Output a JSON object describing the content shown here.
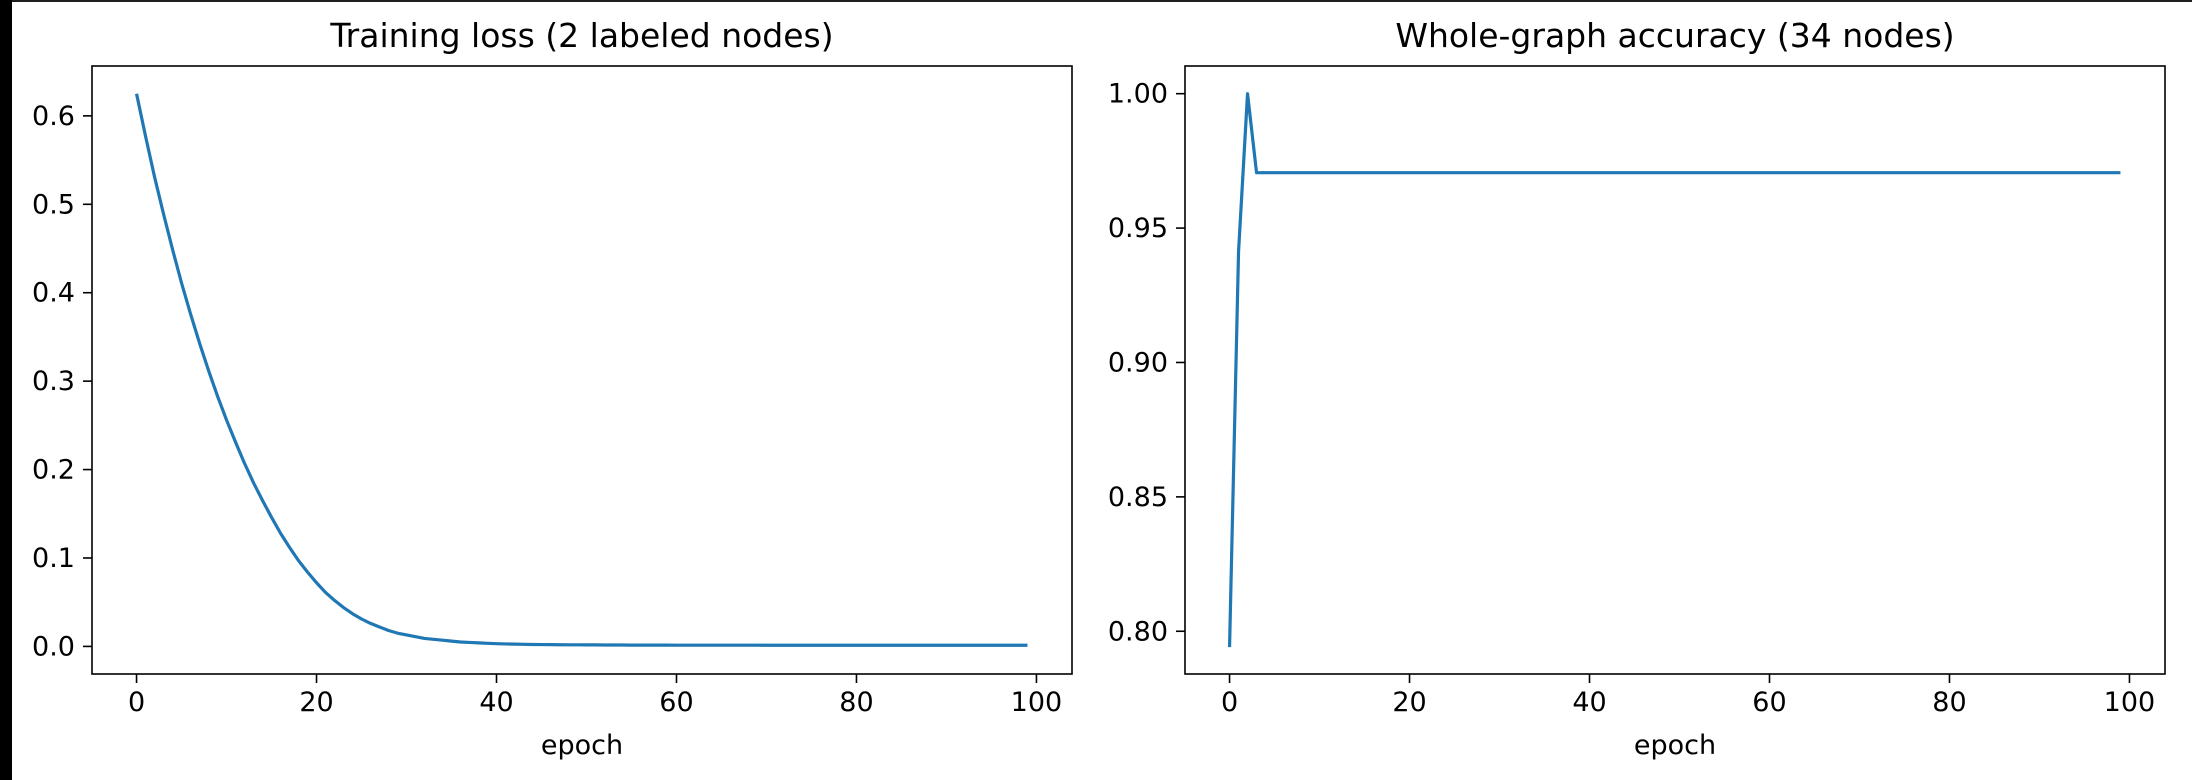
{
  "figure": {
    "background": "#ffffff",
    "line_color": "#1f77b4"
  },
  "chart_data": [
    {
      "type": "line",
      "title": "Training loss (2 labeled nodes)",
      "xlabel": "epoch",
      "ylabel": "",
      "xlim": [
        -4.95,
        103.95
      ],
      "ylim": [
        -0.0312,
        0.6564
      ],
      "xticks": [
        0,
        20,
        40,
        60,
        80,
        100
      ],
      "yticks": [
        0.0,
        0.1,
        0.2,
        0.3,
        0.4,
        0.5,
        0.6
      ],
      "xtick_labels": [
        "0",
        "20",
        "40",
        "60",
        "80",
        "100"
      ],
      "ytick_labels": [
        "0.0",
        "0.1",
        "0.2",
        "0.3",
        "0.4",
        "0.5",
        "0.6"
      ],
      "grid": false,
      "x": [
        0,
        1,
        2,
        3,
        4,
        5,
        6,
        7,
        8,
        9,
        10,
        11,
        12,
        13,
        14,
        15,
        16,
        17,
        18,
        19,
        20,
        21,
        22,
        23,
        24,
        25,
        26,
        27,
        28,
        29,
        30,
        31,
        32,
        33,
        34,
        35,
        36,
        37,
        38,
        39,
        40,
        41,
        42,
        43,
        44,
        45,
        46,
        47,
        48,
        49,
        50,
        51,
        52,
        53,
        54,
        55,
        56,
        57,
        58,
        59,
        60,
        61,
        62,
        63,
        64,
        65,
        66,
        67,
        68,
        69,
        70,
        71,
        72,
        73,
        74,
        75,
        76,
        77,
        78,
        79,
        80,
        81,
        82,
        83,
        84,
        85,
        86,
        87,
        88,
        89,
        90,
        91,
        92,
        93,
        94,
        95,
        96,
        97,
        98,
        99
      ],
      "series": [
        {
          "values": [
            0.625,
            0.577,
            0.531,
            0.489,
            0.449,
            0.411,
            0.376,
            0.343,
            0.312,
            0.283,
            0.256,
            0.231,
            0.207,
            0.185,
            0.165,
            0.146,
            0.128,
            0.112,
            0.097,
            0.084,
            0.072,
            0.061,
            0.052,
            0.044,
            0.037,
            0.031,
            0.026,
            0.022,
            0.018,
            0.015,
            0.013,
            0.011,
            0.009,
            0.008,
            0.007,
            0.006,
            0.005,
            0.0045,
            0.004,
            0.0035,
            0.0031,
            0.0028,
            0.0026,
            0.0024,
            0.0022,
            0.0021,
            0.002,
            0.0019,
            0.0018,
            0.0018,
            0.0017,
            0.0017,
            0.0016,
            0.0016,
            0.0016,
            0.0015,
            0.0015,
            0.0015,
            0.0015,
            0.0015,
            0.0014,
            0.0014,
            0.0014,
            0.0014,
            0.0014,
            0.0014,
            0.0014,
            0.0014,
            0.0014,
            0.0014,
            0.0013,
            0.0013,
            0.0013,
            0.0013,
            0.0013,
            0.0013,
            0.0013,
            0.0013,
            0.0013,
            0.0013,
            0.0013,
            0.0013,
            0.0013,
            0.0013,
            0.0013,
            0.0013,
            0.0013,
            0.0013,
            0.0013,
            0.0013,
            0.0013,
            0.0013,
            0.0013,
            0.0013,
            0.0013,
            0.0013,
            0.0013,
            0.0013,
            0.0013,
            0.0013
          ]
        }
      ]
    },
    {
      "type": "line",
      "title": "Whole-graph accuracy (34 nodes)",
      "xlabel": "epoch",
      "ylabel": "",
      "xlim": [
        -4.95,
        103.95
      ],
      "ylim": [
        0.7841,
        1.0103
      ],
      "xticks": [
        0,
        20,
        40,
        60,
        80,
        100
      ],
      "yticks": [
        0.8,
        0.85,
        0.9,
        0.95,
        1.0
      ],
      "xtick_labels": [
        "0",
        "20",
        "40",
        "60",
        "80",
        "100"
      ],
      "ytick_labels": [
        "0.80",
        "0.85",
        "0.90",
        "0.95",
        "1.00"
      ],
      "grid": false,
      "x": [
        0,
        1,
        2,
        3,
        4,
        5,
        6,
        7,
        8,
        9,
        10,
        11,
        12,
        13,
        14,
        15,
        16,
        17,
        18,
        19,
        20,
        21,
        22,
        23,
        24,
        25,
        26,
        27,
        28,
        29,
        30,
        31,
        32,
        33,
        34,
        35,
        36,
        37,
        38,
        39,
        40,
        41,
        42,
        43,
        44,
        45,
        46,
        47,
        48,
        49,
        50,
        51,
        52,
        53,
        54,
        55,
        56,
        57,
        58,
        59,
        60,
        61,
        62,
        63,
        64,
        65,
        66,
        67,
        68,
        69,
        70,
        71,
        72,
        73,
        74,
        75,
        76,
        77,
        78,
        79,
        80,
        81,
        82,
        83,
        84,
        85,
        86,
        87,
        88,
        89,
        90,
        91,
        92,
        93,
        94,
        95,
        96,
        97,
        98,
        99
      ],
      "series": [
        {
          "values": [
            0.7941,
            0.9412,
            1.0,
            0.9706,
            0.9706,
            0.9706,
            0.9706,
            0.9706,
            0.9706,
            0.9706,
            0.9706,
            0.9706,
            0.9706,
            0.9706,
            0.9706,
            0.9706,
            0.9706,
            0.9706,
            0.9706,
            0.9706,
            0.9706,
            0.9706,
            0.9706,
            0.9706,
            0.9706,
            0.9706,
            0.9706,
            0.9706,
            0.9706,
            0.9706,
            0.9706,
            0.9706,
            0.9706,
            0.9706,
            0.9706,
            0.9706,
            0.9706,
            0.9706,
            0.9706,
            0.9706,
            0.9706,
            0.9706,
            0.9706,
            0.9706,
            0.9706,
            0.9706,
            0.9706,
            0.9706,
            0.9706,
            0.9706,
            0.9706,
            0.9706,
            0.9706,
            0.9706,
            0.9706,
            0.9706,
            0.9706,
            0.9706,
            0.9706,
            0.9706,
            0.9706,
            0.9706,
            0.9706,
            0.9706,
            0.9706,
            0.9706,
            0.9706,
            0.9706,
            0.9706,
            0.9706,
            0.9706,
            0.9706,
            0.9706,
            0.9706,
            0.9706,
            0.9706,
            0.9706,
            0.9706,
            0.9706,
            0.9706,
            0.9706,
            0.9706,
            0.9706,
            0.9706,
            0.9706,
            0.9706,
            0.9706,
            0.9706,
            0.9706,
            0.9706,
            0.9706,
            0.9706,
            0.9706,
            0.9706,
            0.9706,
            0.9706,
            0.9706,
            0.9706,
            0.9706,
            0.9706
          ]
        }
      ]
    }
  ]
}
